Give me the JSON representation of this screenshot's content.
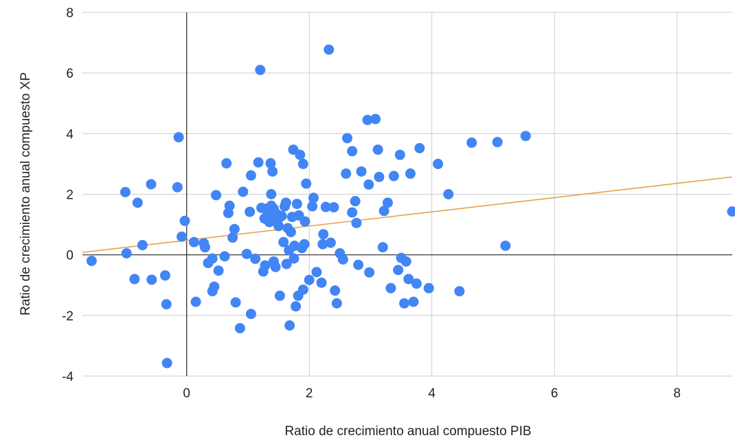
{
  "chart_data": {
    "type": "scatter",
    "title": "",
    "xlabel": "Ratio de crecimiento anual compuesto PIB",
    "ylabel": "Ratio de crecimiento anual compuesto XP",
    "xlim": [
      -1.7,
      8.9
    ],
    "ylim": [
      -4,
      8
    ],
    "x_ticks": [
      "0",
      "2",
      "4",
      "6",
      "8"
    ],
    "y_ticks": [
      "-4",
      "-2",
      "0",
      "2",
      "4",
      "6",
      "8"
    ],
    "grid": true,
    "legend": "none",
    "colors": {
      "points": "#4285f4",
      "trendline": "#e8a04d",
      "grid": "#cccccc",
      "zero_axis": "#222222"
    },
    "trendline": {
      "type": "linear",
      "points": [
        [
          -1.7,
          0.08
        ],
        [
          8.9,
          2.57
        ]
      ]
    },
    "points": [
      [
        -1.55,
        -0.2
      ],
      [
        -1.0,
        2.07
      ],
      [
        -0.98,
        0.05
      ],
      [
        -0.85,
        -0.8
      ],
      [
        -0.8,
        1.72
      ],
      [
        -0.72,
        0.32
      ],
      [
        -0.58,
        2.33
      ],
      [
        -0.57,
        -0.82
      ],
      [
        -0.35,
        -0.68
      ],
      [
        -0.33,
        -1.63
      ],
      [
        -0.32,
        -3.57
      ],
      [
        -0.15,
        2.23
      ],
      [
        -0.13,
        3.88
      ],
      [
        -0.08,
        0.6
      ],
      [
        -0.03,
        1.12
      ],
      [
        0.12,
        0.42
      ],
      [
        0.15,
        -1.55
      ],
      [
        0.28,
        0.38
      ],
      [
        0.3,
        0.25
      ],
      [
        0.35,
        -0.27
      ],
      [
        0.42,
        -0.12
      ],
      [
        0.42,
        -1.2
      ],
      [
        0.45,
        -1.05
      ],
      [
        0.48,
        1.97
      ],
      [
        0.52,
        -0.52
      ],
      [
        0.62,
        -0.05
      ],
      [
        0.65,
        3.02
      ],
      [
        0.68,
        1.38
      ],
      [
        0.7,
        1.62
      ],
      [
        0.75,
        0.57
      ],
      [
        0.78,
        0.85
      ],
      [
        0.8,
        -1.57
      ],
      [
        0.87,
        -2.42
      ],
      [
        0.92,
        2.08
      ],
      [
        0.98,
        0.03
      ],
      [
        1.03,
        1.42
      ],
      [
        1.05,
        -1.95
      ],
      [
        1.05,
        2.62
      ],
      [
        1.12,
        -0.13
      ],
      [
        1.17,
        3.05
      ],
      [
        1.2,
        6.1
      ],
      [
        1.22,
        1.55
      ],
      [
        1.25,
        -0.55
      ],
      [
        1.27,
        1.2
      ],
      [
        1.28,
        -0.35
      ],
      [
        1.3,
        1.52
      ],
      [
        1.32,
        1.32
      ],
      [
        1.35,
        1.08
      ],
      [
        1.36,
        1.42
      ],
      [
        1.37,
        3.02
      ],
      [
        1.38,
        2.0
      ],
      [
        1.38,
        1.62
      ],
      [
        1.4,
        1.18
      ],
      [
        1.4,
        2.75
      ],
      [
        1.42,
        1.52
      ],
      [
        1.42,
        -0.22
      ],
      [
        1.45,
        -0.4
      ],
      [
        1.47,
        1.35
      ],
      [
        1.48,
        1.1
      ],
      [
        1.5,
        0.95
      ],
      [
        1.52,
        -1.35
      ],
      [
        1.55,
        1.28
      ],
      [
        1.58,
        0.42
      ],
      [
        1.6,
        1.6
      ],
      [
        1.62,
        1.72
      ],
      [
        1.63,
        -0.3
      ],
      [
        1.65,
        0.88
      ],
      [
        1.67,
        0.15
      ],
      [
        1.68,
        -2.33
      ],
      [
        1.7,
        0.75
      ],
      [
        1.72,
        1.25
      ],
      [
        1.74,
        3.47
      ],
      [
        1.75,
        -0.12
      ],
      [
        1.76,
        0.3
      ],
      [
        1.78,
        -1.7
      ],
      [
        1.8,
        1.68
      ],
      [
        1.82,
        -1.35
      ],
      [
        1.83,
        1.3
      ],
      [
        1.85,
        3.3
      ],
      [
        1.88,
        0.22
      ],
      [
        1.9,
        3.0
      ],
      [
        1.9,
        -1.15
      ],
      [
        1.92,
        0.35
      ],
      [
        1.93,
        1.1
      ],
      [
        1.95,
        2.35
      ],
      [
        2.0,
        -0.83
      ],
      [
        2.05,
        1.6
      ],
      [
        2.07,
        1.88
      ],
      [
        2.12,
        -0.57
      ],
      [
        2.2,
        -0.92
      ],
      [
        2.22,
        0.35
      ],
      [
        2.23,
        0.68
      ],
      [
        2.27,
        1.58
      ],
      [
        2.32,
        6.77
      ],
      [
        2.35,
        0.4
      ],
      [
        2.4,
        1.57
      ],
      [
        2.42,
        -1.18
      ],
      [
        2.45,
        -1.6
      ],
      [
        2.5,
        0.05
      ],
      [
        2.55,
        -0.15
      ],
      [
        2.6,
        2.68
      ],
      [
        2.62,
        3.85
      ],
      [
        2.7,
        3.42
      ],
      [
        2.7,
        1.4
      ],
      [
        2.75,
        1.77
      ],
      [
        2.77,
        1.05
      ],
      [
        2.8,
        -0.33
      ],
      [
        2.85,
        2.75
      ],
      [
        2.95,
        4.45
      ],
      [
        2.97,
        2.32
      ],
      [
        2.98,
        -0.58
      ],
      [
        3.08,
        4.48
      ],
      [
        3.12,
        3.47
      ],
      [
        3.14,
        2.57
      ],
      [
        3.2,
        0.25
      ],
      [
        3.22,
        1.45
      ],
      [
        3.28,
        1.72
      ],
      [
        3.33,
        -1.1
      ],
      [
        3.38,
        2.6
      ],
      [
        3.45,
        -0.5
      ],
      [
        3.48,
        3.3
      ],
      [
        3.5,
        -0.1
      ],
      [
        3.55,
        -1.6
      ],
      [
        3.58,
        -0.22
      ],
      [
        3.62,
        -0.8
      ],
      [
        3.65,
        2.68
      ],
      [
        3.7,
        -1.55
      ],
      [
        3.75,
        -0.95
      ],
      [
        3.8,
        3.52
      ],
      [
        3.95,
        -1.1
      ],
      [
        4.1,
        3.0
      ],
      [
        4.27,
        2.0
      ],
      [
        4.45,
        -1.2
      ],
      [
        4.65,
        3.7
      ],
      [
        5.07,
        3.72
      ],
      [
        5.2,
        0.3
      ],
      [
        5.53,
        3.92
      ],
      [
        8.9,
        1.43
      ]
    ]
  }
}
